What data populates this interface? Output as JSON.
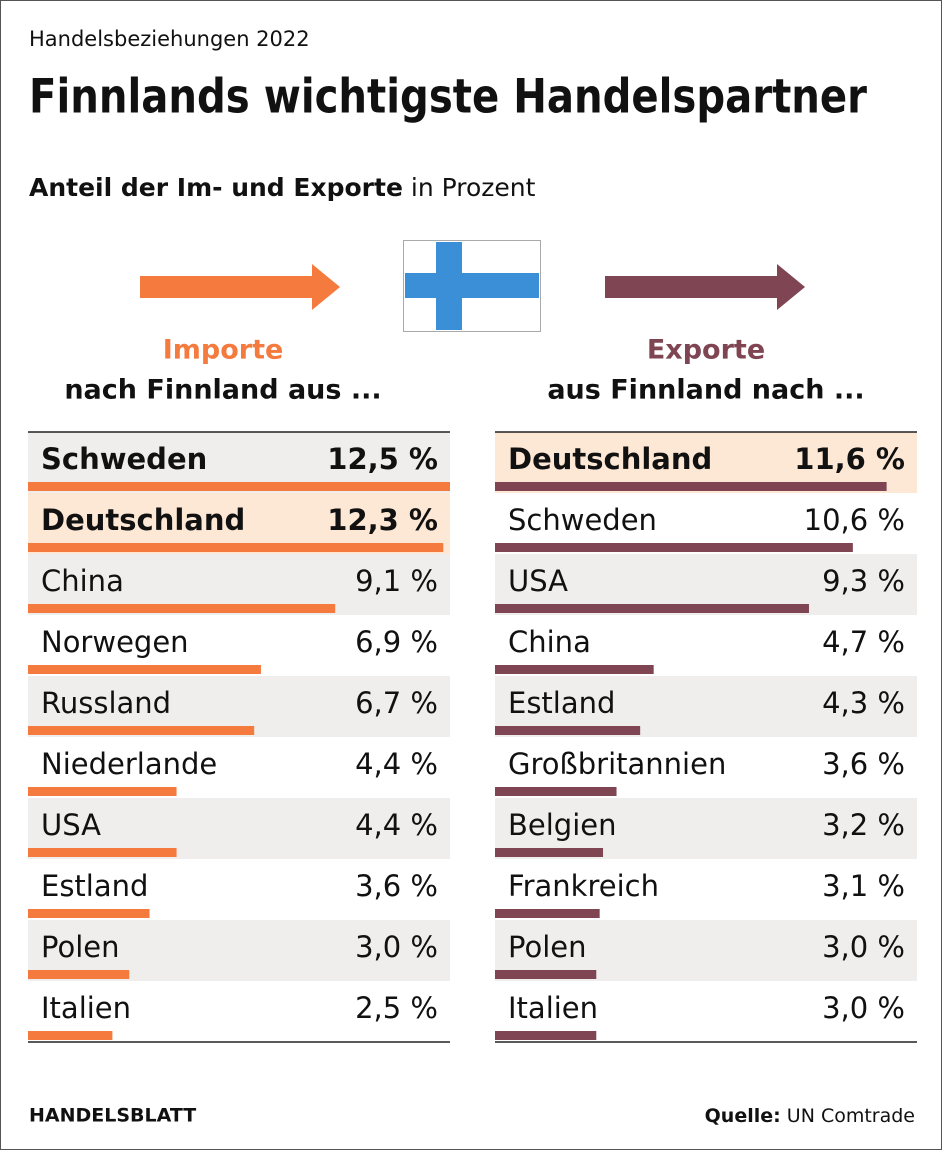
{
  "header": {
    "kicker": "Handelsbeziehungen 2022",
    "title": "Finnlands wichtigste Handelspartner",
    "subtitle_bold": "Anteil der Im- und Exporte",
    "subtitle_rest": "in Prozent"
  },
  "chart_data": [
    {
      "type": "bar",
      "orientation": "horizontal",
      "title": "Importe",
      "subtitle": "nach Finnland aus ...",
      "color": "#f47a3d",
      "categories": [
        "Schweden",
        "Deutschland",
        "China",
        "Norwegen",
        "Russland",
        "Niederlande",
        "USA",
        "Estland",
        "Polen",
        "Italien"
      ],
      "values": [
        12.5,
        12.3,
        9.1,
        6.9,
        6.7,
        4.4,
        4.4,
        3.6,
        3.0,
        2.5
      ],
      "value_labels": [
        "12,5 %",
        "12,3 %",
        "9,1 %",
        "6,9 %",
        "6,7 %",
        "4,4 %",
        "4,4 %",
        "3,6 %",
        "3,0 %",
        "2,5 %"
      ],
      "bold_rows": [
        0,
        1
      ],
      "highlight": 1
    },
    {
      "type": "bar",
      "orientation": "horizontal",
      "title": "Exporte",
      "subtitle": "aus Finnland nach ...",
      "color": "#7f4552",
      "categories": [
        "Deutschland",
        "Schweden",
        "USA",
        "China",
        "Estland",
        "Großbritannien",
        "Belgien",
        "Frankreich",
        "Polen",
        "Italien"
      ],
      "values": [
        11.6,
        10.6,
        9.3,
        4.7,
        4.3,
        3.6,
        3.2,
        3.1,
        3.0,
        3.0
      ],
      "value_labels": [
        "11,6 %",
        "10,6 %",
        "9,3 %",
        "4,7 %",
        "4,3 %",
        "3,6 %",
        "3,2 %",
        "3,1 %",
        "3,0 %",
        "3,0 %"
      ],
      "bold_rows": [
        0
      ],
      "highlight": 0
    }
  ],
  "footer": {
    "brand": "HANDELSBLATT",
    "source_label": "Quelle:",
    "source": "UN Comtrade"
  }
}
